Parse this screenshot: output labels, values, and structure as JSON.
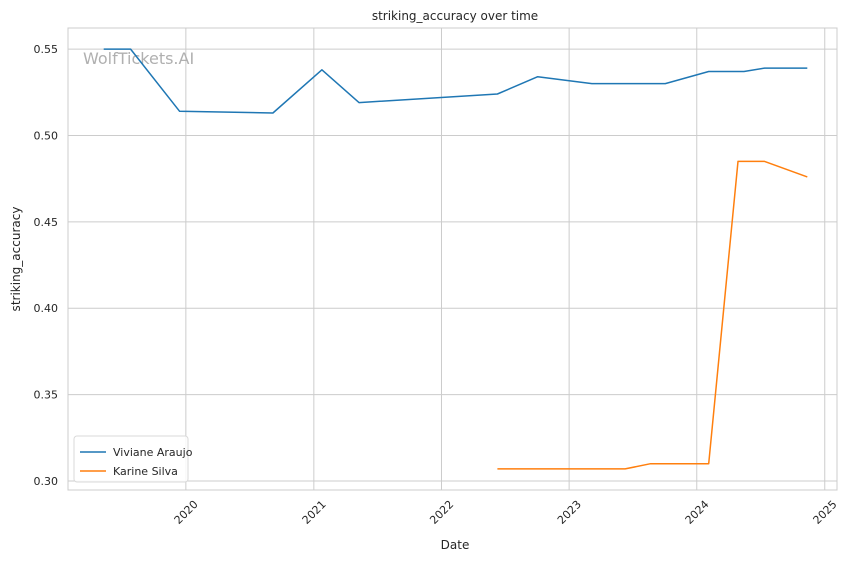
{
  "watermark": "WolfTickets.AI",
  "chart_data": {
    "type": "line",
    "title": "striking_accuracy over time",
    "xlabel": "Date",
    "ylabel": "striking_accuracy",
    "x_ticks": [
      "2020",
      "2021",
      "2022",
      "2023",
      "2024",
      "2025"
    ],
    "y_ticks": [
      "0.30",
      "0.35",
      "0.40",
      "0.45",
      "0.50",
      "0.55"
    ],
    "xlim": [
      "2019-01-29",
      "2025-02-05"
    ],
    "ylim": [
      0.2948,
      0.5622
    ],
    "grid": true,
    "legend_position": "lower-left",
    "series": [
      {
        "name": "Viviane Araujo",
        "color": "#1f77b4",
        "points": [
          [
            "2019-05-11",
            0.55
          ],
          [
            "2019-07-27",
            0.55
          ],
          [
            "2019-12-14",
            0.514
          ],
          [
            "2020-09-06",
            0.513
          ],
          [
            "2021-01-24",
            0.538
          ],
          [
            "2021-05-10",
            0.519
          ],
          [
            "2022-06-10",
            0.524
          ],
          [
            "2022-10-03",
            0.534
          ],
          [
            "2023-03-07",
            0.53
          ],
          [
            "2023-10-03",
            0.53
          ],
          [
            "2024-02-04",
            0.537
          ],
          [
            "2024-05-15",
            0.537
          ],
          [
            "2024-07-13",
            0.539
          ],
          [
            "2024-11-12",
            0.539
          ]
        ]
      },
      {
        "name": "Karine Silva",
        "color": "#ff7f0e",
        "points": [
          [
            "2022-06-10",
            0.307
          ],
          [
            "2023-06-10",
            0.307
          ],
          [
            "2023-08-22",
            0.31
          ],
          [
            "2024-02-04",
            0.31
          ],
          [
            "2024-04-28",
            0.485
          ],
          [
            "2024-07-13",
            0.485
          ],
          [
            "2024-11-12",
            0.476
          ]
        ]
      }
    ]
  }
}
